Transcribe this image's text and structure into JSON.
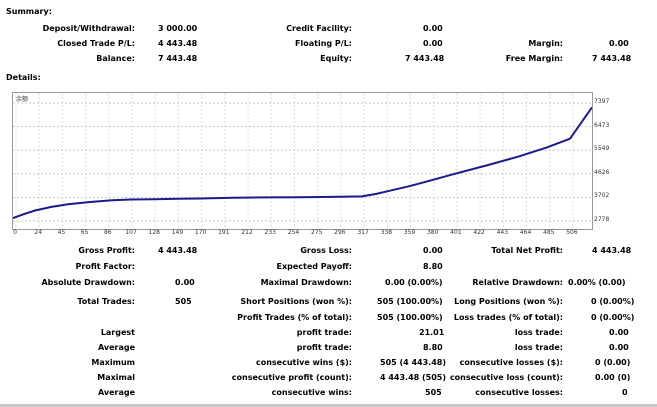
{
  "summary": {
    "title": "Summary:",
    "deposit_label": "Deposit/Withdrawal:",
    "deposit_value": "3 000.00",
    "closed_pl_label": "Closed Trade P/L:",
    "closed_pl_value": "4 443.48",
    "balance_label": "Balance:",
    "balance_value": "7 443.48",
    "credit_label": "Credit Facility:",
    "credit_value": "0.00",
    "floating_label": "Floating P/L:",
    "floating_value": "0.00",
    "equity_label": "Equity:",
    "equity_value": "7 443.48",
    "margin_label": "Margin:",
    "margin_value": "0.00",
    "free_margin_label": "Free Margin:",
    "free_margin_value": "7 443.48"
  },
  "details": {
    "title": "Details:",
    "chart_corner_glyph": "余额"
  },
  "chart_data": {
    "type": "line",
    "x_ticks": [
      "0",
      "24",
      "45",
      "65",
      "86",
      "107",
      "128",
      "149",
      "170",
      "191",
      "212",
      "233",
      "254",
      "275",
      "296",
      "317",
      "338",
      "359",
      "380",
      "401",
      "422",
      "443",
      "464",
      "485",
      "506"
    ],
    "y_ticks": [
      "7397",
      "6473",
      "5549",
      "4626",
      "3702",
      "2778"
    ],
    "ylim": [
      2778,
      7397
    ],
    "xlim": [
      0,
      526
    ],
    "series": [
      {
        "color": "#1a1a8c",
        "x": [
          0,
          10,
          20,
          35,
          50,
          70,
          90,
          107,
          128,
          150,
          170,
          200,
          230,
          260,
          290,
          317,
          330,
          338,
          360,
          380,
          400,
          430,
          460,
          485,
          506,
          526
        ],
        "y": [
          2890,
          3050,
          3190,
          3330,
          3430,
          3520,
          3590,
          3620,
          3630,
          3650,
          3660,
          3690,
          3700,
          3710,
          3720,
          3740,
          3840,
          3920,
          4140,
          4370,
          4610,
          4950,
          5310,
          5660,
          6000,
          7230
        ]
      }
    ]
  },
  "stats": {
    "gross_profit_label": "Gross Profit:",
    "gross_profit_value": "4 443.48",
    "gross_loss_label": "Gross Loss:",
    "gross_loss_value": "0.00",
    "total_net_profit_label": "Total Net Profit:",
    "total_net_profit_value": "4 443.48",
    "profit_factor_label": "Profit Factor:",
    "expected_payoff_label": "Expected Payoff:",
    "expected_payoff_value": "8.80",
    "absolute_drawdown_label": "Absolute Drawdown:",
    "absolute_drawdown_value": "0.00",
    "maximal_drawdown_label": "Maximal Drawdown:",
    "maximal_drawdown_value": "0.00 (0.00%)",
    "relative_drawdown_label": "Relative Drawdown:",
    "relative_drawdown_value": "0.00% (0.00)",
    "total_trades_label": "Total Trades:",
    "total_trades_value": "505",
    "short_positions_label": "Short Positions (won %):",
    "short_positions_value": "505 (100.00%)",
    "long_positions_label": "Long Positions (won %):",
    "long_positions_value": "0 (0.00%)",
    "profit_trades_label": "Profit Trades (% of total):",
    "profit_trades_value": "505 (100.00%)",
    "loss_trades_label": "Loss trades (% of total):",
    "loss_trades_value": "0 (0.00%)",
    "largest_label": "Largest",
    "largest_profit_label": "profit trade:",
    "largest_profit_value": "21.01",
    "largest_loss_label": "loss trade:",
    "largest_loss_value": "0.00",
    "average_label": "Average",
    "average_profit_label": "profit trade:",
    "average_profit_value": "8.80",
    "average_loss_label": "loss trade:",
    "average_loss_value": "0.00",
    "maximum_label": "Maximum",
    "max_cons_wins_label": "consecutive wins ($):",
    "max_cons_wins_value": "505 (4 443.48)",
    "max_cons_losses_label": "consecutive losses ($):",
    "max_cons_losses_value": "0 (0.00)",
    "maximal_label": "Maximal",
    "maximal_cons_profit_label": "consecutive profit (count):",
    "maximal_cons_profit_value": "4 443.48 (505)",
    "maximal_cons_loss_label": "consecutive loss (count):",
    "maximal_cons_loss_value": "0.00 (0)",
    "average2_label": "Average",
    "avg_cons_wins_label": "consecutive wins:",
    "avg_cons_wins_value": "505",
    "avg_cons_losses_label": "consecutive losses:",
    "avg_cons_losses_value": "0"
  }
}
